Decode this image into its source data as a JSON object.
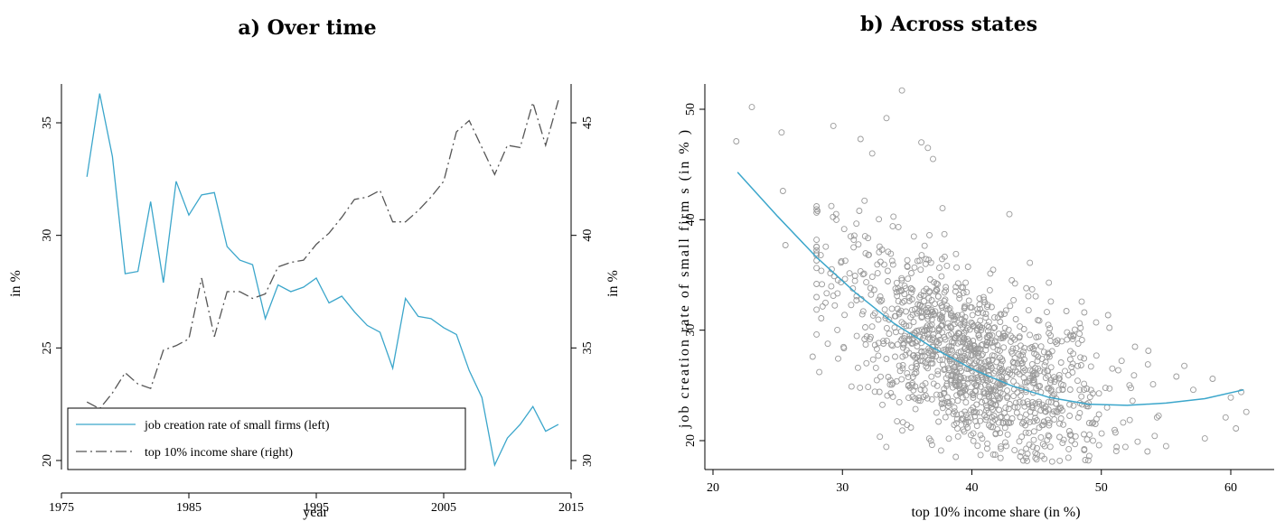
{
  "chart_data": [
    {
      "panel_title": "a) Over time",
      "type": "line",
      "xlabel": "year",
      "ylabel_left": "in %",
      "ylabel_right": "in %",
      "xlim": [
        1975,
        2015
      ],
      "ylim_left": [
        20,
        36.5
      ],
      "ylim_right": [
        30,
        46
      ],
      "x_ticks": [
        1975,
        1985,
        1995,
        2005,
        2015
      ],
      "y_ticks_left": [
        20,
        25,
        30,
        35
      ],
      "y_ticks_right": [
        30,
        35,
        40,
        45
      ],
      "grid": false,
      "legend_position": "bottom-left",
      "series": [
        {
          "name": "job creation rate of small firms (left)",
          "axis": "left",
          "color": "#3BA6CB",
          "style": "solid",
          "x": [
            1977,
            1978,
            1979,
            1980,
            1981,
            1982,
            1983,
            1984,
            1985,
            1986,
            1987,
            1988,
            1989,
            1990,
            1991,
            1992,
            1993,
            1994,
            1995,
            1996,
            1997,
            1998,
            1999,
            2000,
            2001,
            2002,
            2003,
            2004,
            2005,
            2006,
            2007,
            2008,
            2009,
            2010,
            2011,
            2012,
            2013,
            2014
          ],
          "values": [
            32.6,
            36.3,
            33.5,
            28.3,
            28.4,
            31.5,
            27.9,
            32.4,
            30.9,
            31.8,
            31.9,
            29.5,
            28.9,
            28.7,
            26.3,
            27.8,
            27.5,
            27.7,
            28.1,
            27.0,
            27.3,
            26.6,
            26.0,
            25.7,
            24.1,
            27.2,
            26.4,
            26.3,
            25.9,
            25.6,
            24.0,
            22.8,
            19.8,
            21.0,
            21.6,
            22.4,
            21.3,
            21.6
          ]
        },
        {
          "name": "top 10% income share (right)",
          "axis": "right",
          "color": "#555555",
          "style": "dash-dot",
          "x": [
            1977,
            1978,
            1979,
            1980,
            1981,
            1982,
            1983,
            1984,
            1985,
            1986,
            1987,
            1988,
            1989,
            1990,
            1991,
            1992,
            1993,
            1994,
            1995,
            1996,
            1997,
            1998,
            1999,
            2000,
            2001,
            2002,
            2003,
            2004,
            2005,
            2006,
            2007,
            2008,
            2009,
            2010,
            2011,
            2012,
            2013,
            2014
          ],
          "values": [
            32.6,
            32.3,
            33.0,
            33.9,
            33.4,
            33.2,
            34.9,
            35.1,
            35.4,
            38.1,
            35.5,
            37.5,
            37.5,
            37.2,
            37.4,
            38.6,
            38.8,
            38.9,
            39.6,
            40.1,
            40.8,
            41.6,
            41.7,
            42.0,
            40.6,
            40.6,
            41.1,
            41.7,
            42.4,
            44.6,
            45.1,
            43.9,
            42.7,
            44.0,
            43.9,
            45.9,
            44.0,
            46.0
          ]
        }
      ]
    },
    {
      "panel_title": "b) Across states",
      "type": "scatter",
      "xlabel": "top 10% income share (in %)",
      "ylabel": "job creation rate of small firm s (in % )",
      "xlim": [
        19.5,
        61.5
      ],
      "ylim": [
        17.5,
        52.5
      ],
      "x_ticks": [
        20,
        30,
        40,
        50,
        60
      ],
      "y_ticks": [
        20,
        30,
        40,
        50
      ],
      "grid": false,
      "point_color": "#9a9a9a",
      "fit_color": "#3BA6CB",
      "fit_line": {
        "x": [
          21.9,
          25,
          28,
          31,
          34,
          37,
          40,
          43,
          46,
          49,
          52,
          55,
          58,
          61
        ],
        "values": [
          44.3,
          40.3,
          36.6,
          33.4,
          30.6,
          28.4,
          26.5,
          25.0,
          23.9,
          23.3,
          23.2,
          23.4,
          23.8,
          24.6
        ]
      },
      "cluster_center": [
        40.0,
        26.5
      ],
      "cluster_spread": [
        5.2,
        4.0
      ],
      "n_points": 1300,
      "outlier_points": [
        [
          23.0,
          50.2
        ],
        [
          21.8,
          47.1
        ],
        [
          25.3,
          47.9
        ],
        [
          34.6,
          51.7
        ],
        [
          33.4,
          49.2
        ],
        [
          31.4,
          47.3
        ],
        [
          29.3,
          48.5
        ],
        [
          32.3,
          46.0
        ],
        [
          36.6,
          46.5
        ],
        [
          36.1,
          47.0
        ],
        [
          37.0,
          45.5
        ],
        [
          25.6,
          37.7
        ],
        [
          25.4,
          42.6
        ],
        [
          27.7,
          27.6
        ],
        [
          30.7,
          24.9
        ],
        [
          54.0,
          25.1
        ],
        [
          55.8,
          25.8
        ],
        [
          57.1,
          24.6
        ],
        [
          58.6,
          25.6
        ],
        [
          60.0,
          23.9
        ],
        [
          60.8,
          24.4
        ],
        [
          61.2,
          22.6
        ],
        [
          59.6,
          22.1
        ],
        [
          60.4,
          21.1
        ],
        [
          58.0,
          20.2
        ],
        [
          55.0,
          19.5
        ],
        [
          52.8,
          19.9
        ],
        [
          47.7,
          20.0
        ],
        [
          46.2,
          18.1
        ],
        [
          45.0,
          18.3
        ],
        [
          44.3,
          18.8
        ],
        [
          49.6,
          30.7
        ],
        [
          52.6,
          28.5
        ],
        [
          53.6,
          26.9
        ],
        [
          46.1,
          32.6
        ],
        [
          42.9,
          40.5
        ],
        [
          48.4,
          30.2
        ]
      ]
    }
  ]
}
